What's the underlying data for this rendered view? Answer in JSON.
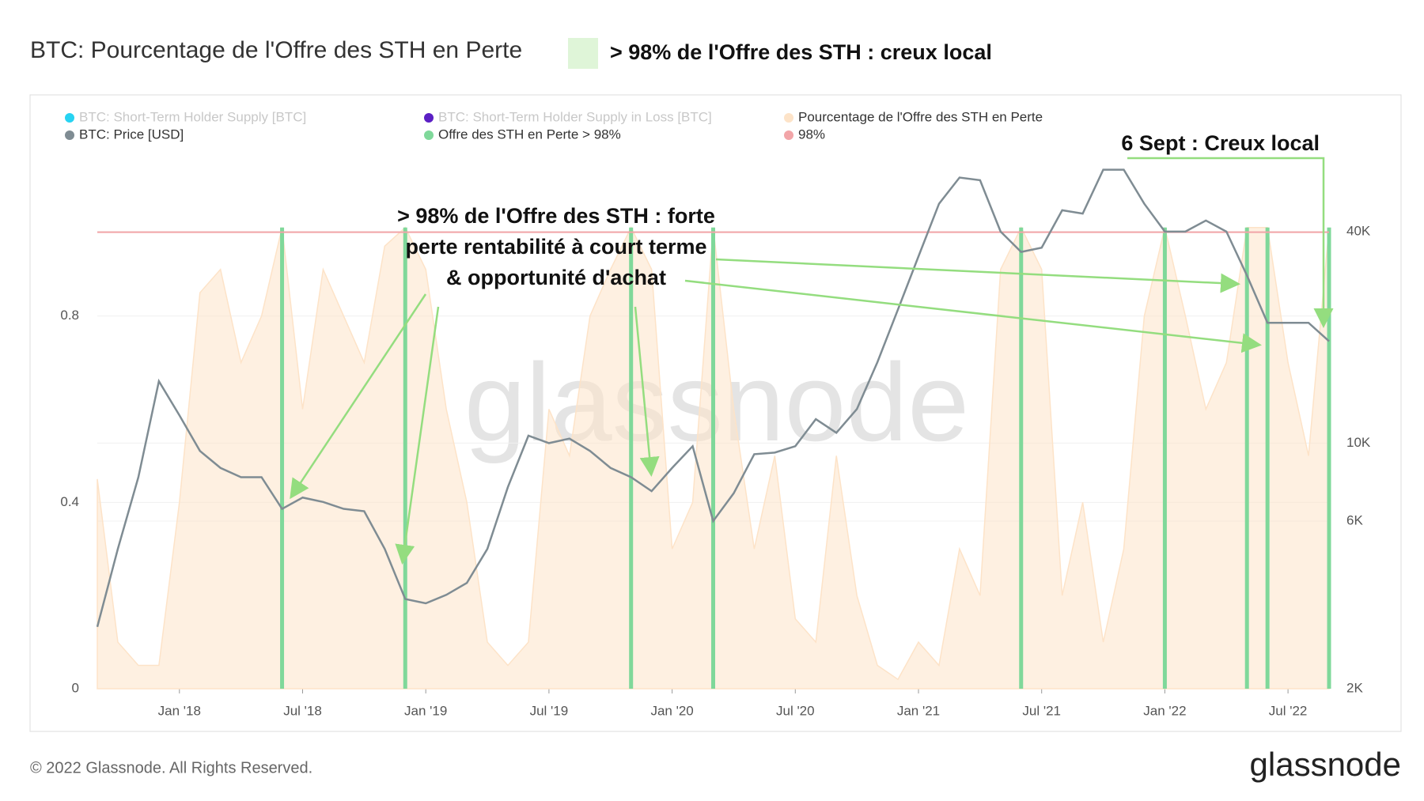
{
  "chart_data": {
    "type": "line",
    "title": "BTC: Pourcentage de l'Offre des STH en Perte",
    "title_note": "> 98% de l'Offre des STH : creux local",
    "title_note_color": "#dff5d8",
    "x": [
      "2017-09",
      "2017-10",
      "2017-11",
      "2017-12",
      "2018-01",
      "2018-02",
      "2018-03",
      "2018-04",
      "2018-05",
      "2018-06",
      "2018-07",
      "2018-08",
      "2018-09",
      "2018-10",
      "2018-11",
      "2018-12",
      "2019-01",
      "2019-02",
      "2019-03",
      "2019-04",
      "2019-05",
      "2019-06",
      "2019-07",
      "2019-08",
      "2019-09",
      "2019-10",
      "2019-11",
      "2019-12",
      "2020-01",
      "2020-02",
      "2020-03",
      "2020-04",
      "2020-05",
      "2020-06",
      "2020-07",
      "2020-08",
      "2020-09",
      "2020-10",
      "2020-11",
      "2020-12",
      "2021-01",
      "2021-02",
      "2021-03",
      "2021-04",
      "2021-05",
      "2021-06",
      "2021-07",
      "2021-08",
      "2021-09",
      "2021-10",
      "2021-11",
      "2021-12",
      "2022-01",
      "2022-02",
      "2022-03",
      "2022-04",
      "2022-05",
      "2022-06",
      "2022-07",
      "2022-08",
      "2022-09"
    ],
    "xlim": [
      "2017-09",
      "2022-09"
    ],
    "xticks": [
      {
        "value": "2018-01",
        "label": "Jan '18"
      },
      {
        "value": "2018-07",
        "label": "Jul '18"
      },
      {
        "value": "2019-01",
        "label": "Jan '19"
      },
      {
        "value": "2019-07",
        "label": "Jul '19"
      },
      {
        "value": "2020-01",
        "label": "Jan '20"
      },
      {
        "value": "2020-07",
        "label": "Jul '20"
      },
      {
        "value": "2021-01",
        "label": "Jan '21"
      },
      {
        "value": "2021-07",
        "label": "Jul '21"
      },
      {
        "value": "2022-01",
        "label": "Jan '22"
      },
      {
        "value": "2022-07",
        "label": "Jul '22"
      }
    ],
    "ylim": [
      0,
      1.2
    ],
    "yticks": [
      0,
      0.4,
      0.8
    ],
    "y2lim": [
      2000,
      78000
    ],
    "y2log": true,
    "y2ticks": [
      {
        "value": 2000,
        "label": "2K"
      },
      {
        "value": 6000,
        "label": "6K"
      },
      {
        "value": 10000,
        "label": "10K"
      },
      {
        "value": 40000,
        "label": "40K"
      }
    ],
    "grid": true,
    "series": [
      {
        "name": "BTC: Short-Term Holder Supply [BTC]",
        "color": "#27d3f2",
        "hidden": true
      },
      {
        "name": "BTC: Short-Term Holder Supply in Loss [BTC]",
        "color": "#5b1fc4",
        "hidden": true
      },
      {
        "name": "Pourcentage de l'Offre des STH en Perte",
        "color": "#fde3c8",
        "style": "area",
        "values": [
          0.45,
          0.1,
          0.05,
          0.05,
          0.4,
          0.85,
          0.9,
          0.7,
          0.8,
          0.99,
          0.6,
          0.9,
          0.8,
          0.7,
          0.95,
          0.99,
          0.9,
          0.6,
          0.4,
          0.1,
          0.05,
          0.1,
          0.6,
          0.5,
          0.8,
          0.9,
          0.99,
          0.9,
          0.3,
          0.4,
          0.99,
          0.6,
          0.3,
          0.5,
          0.15,
          0.1,
          0.5,
          0.2,
          0.05,
          0.02,
          0.1,
          0.05,
          0.3,
          0.2,
          0.9,
          0.99,
          0.9,
          0.2,
          0.4,
          0.1,
          0.3,
          0.8,
          0.99,
          0.8,
          0.6,
          0.7,
          0.99,
          0.99,
          0.7,
          0.5,
          0.99
        ]
      },
      {
        "name": "BTC: Price [USD]",
        "color": "#7f8c93",
        "style": "line",
        "axis": "y2",
        "values": [
          3000,
          5000,
          8000,
          15000,
          12000,
          9500,
          8500,
          8000,
          8000,
          6500,
          7000,
          6800,
          6500,
          6400,
          5000,
          3600,
          3500,
          3700,
          4000,
          5000,
          7500,
          10500,
          10000,
          10300,
          9500,
          8500,
          8000,
          7300,
          8500,
          9800,
          6000,
          7200,
          9300,
          9400,
          9800,
          11700,
          10700,
          12500,
          17000,
          24000,
          34000,
          48000,
          57000,
          56000,
          40000,
          35000,
          36000,
          46000,
          45000,
          60000,
          60000,
          48000,
          40000,
          40000,
          43000,
          40000,
          30000,
          22000,
          22000,
          22000,
          19500
        ]
      },
      {
        "name": "Offre des STH en Perte > 98%",
        "color": "#7fd89a",
        "style": "bars",
        "values": [
          null,
          null,
          null,
          null,
          null,
          null,
          null,
          null,
          null,
          0.99,
          null,
          null,
          null,
          null,
          null,
          0.99,
          null,
          null,
          null,
          null,
          null,
          null,
          null,
          null,
          null,
          null,
          0.99,
          null,
          null,
          null,
          0.99,
          null,
          null,
          null,
          null,
          null,
          null,
          null,
          null,
          null,
          null,
          null,
          null,
          null,
          null,
          0.99,
          null,
          null,
          null,
          null,
          null,
          null,
          0.99,
          null,
          null,
          null,
          0.99,
          0.99,
          null,
          null,
          0.99
        ]
      },
      {
        "name": "98%",
        "color": "#f2a5a8",
        "style": "hline",
        "value": 0.98
      }
    ],
    "annotations": {
      "main": [
        "> 98% de l'Offre des STH : forte",
        "perte rentabilité à court terme",
        "& opportunité d'achat"
      ],
      "sept": "6 Sept : Creux local"
    },
    "watermark": "glassnode"
  },
  "footer": {
    "copyright": "© 2022 Glassnode. All Rights Reserved.",
    "logo": "glassnode"
  }
}
